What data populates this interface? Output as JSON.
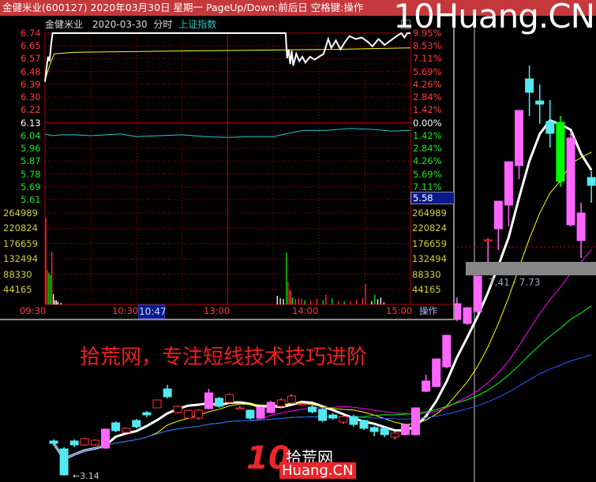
{
  "window": {
    "title": "金健米业(600127) 2020年03月30日 星期一 PageUp/Down:前后日 空格键:操作",
    "watermark": "10Huang.CN"
  },
  "header": {
    "stock": "金健米业",
    "date": "2020-03-30",
    "mode": "分时",
    "index_link": "上证指数"
  },
  "overlay": {
    "slogan": "拾荒网，专注短线技术技巧进阶",
    "range_label": "7.41 - 7.73",
    "low_label": "3.14",
    "logo_text": "拾荒网",
    "logo_sub": "Huang.CN",
    "logo_num": "10"
  },
  "colors": {
    "up": "#ff3232",
    "down": "#00e600",
    "flat": "#ffffff",
    "price_line": "#ffffff",
    "avg_line": "#ffff00",
    "index_line": "#20c8c8",
    "grid": "#b00000",
    "titlebar": "#c5383b",
    "candle_up": "#ff66ff",
    "candle_down": "#55e8f0",
    "candle_big_down": "#00ff00"
  },
  "chart_data": [
    {
      "type": "line",
      "name_hint": "intraday",
      "prev_close": 6.13,
      "ylim": [
        5.52,
        6.74
      ],
      "price_ticks_left": [
        "6.74",
        "6.65",
        "6.57",
        "6.48",
        "6.39",
        "6.30",
        "6.22",
        "6.13",
        "6.04",
        "5.96",
        "5.87",
        "5.78",
        "5.69",
        "5.61"
      ],
      "pct_ticks_right": [
        "9.95%",
        "8.53%",
        "7.11%",
        "5.69%",
        "4.26%",
        "2.84%",
        "1.42%",
        "0.00%",
        "1.42%",
        "2.84%",
        "4.26%",
        "5.69%",
        "7.11%"
      ],
      "cursor_price": "5.58",
      "time_ticks": [
        "09:30",
        "10:30",
        "13:00",
        "14:00",
        "15:00"
      ],
      "cursor_time": "10:47",
      "action_label": "操作",
      "price": [
        [
          0,
          6.41
        ],
        [
          1,
          6.5
        ],
        [
          2,
          6.58
        ],
        [
          3,
          6.55
        ],
        [
          4,
          6.66
        ],
        [
          5,
          6.74
        ],
        [
          158,
          6.74
        ],
        [
          159,
          6.57
        ],
        [
          160,
          6.63
        ],
        [
          161,
          6.53
        ],
        [
          162,
          6.62
        ],
        [
          163,
          6.52
        ],
        [
          165,
          6.6
        ],
        [
          167,
          6.55
        ],
        [
          169,
          6.58
        ],
        [
          171,
          6.54
        ],
        [
          174,
          6.58
        ],
        [
          177,
          6.56
        ],
        [
          180,
          6.58
        ],
        [
          183,
          6.6
        ],
        [
          186,
          6.7
        ],
        [
          188,
          6.64
        ],
        [
          191,
          6.69
        ],
        [
          194,
          6.63
        ],
        [
          197,
          6.68
        ],
        [
          200,
          6.72
        ],
        [
          204,
          6.7
        ],
        [
          208,
          6.71
        ],
        [
          212,
          6.68
        ],
        [
          215,
          6.65
        ],
        [
          219,
          6.7
        ],
        [
          223,
          6.66
        ],
        [
          227,
          6.69
        ],
        [
          231,
          6.72
        ],
        [
          234,
          6.74
        ],
        [
          236,
          6.71
        ],
        [
          238,
          6.74
        ],
        [
          240,
          6.74
        ]
      ],
      "avg_price": [
        [
          0,
          6.42
        ],
        [
          3,
          6.52
        ],
        [
          6,
          6.6
        ],
        [
          20,
          6.61
        ],
        [
          100,
          6.62
        ],
        [
          190,
          6.63
        ],
        [
          240,
          6.64
        ]
      ],
      "index_pct": [
        [
          0,
          -1.2
        ],
        [
          5,
          -1.4
        ],
        [
          10,
          -1.3
        ],
        [
          20,
          -1.3
        ],
        [
          30,
          -1.4
        ],
        [
          40,
          -1.3
        ],
        [
          50,
          -1.2
        ],
        [
          60,
          -1.5
        ],
        [
          75,
          -1.4
        ],
        [
          90,
          -1.3
        ],
        [
          105,
          -1.5
        ],
        [
          120,
          -1.6
        ],
        [
          135,
          -1.5
        ],
        [
          150,
          -1.5
        ],
        [
          158,
          -1.2
        ],
        [
          170,
          -0.8
        ],
        [
          185,
          -0.8
        ],
        [
          200,
          -0.6
        ],
        [
          215,
          -0.7
        ],
        [
          228,
          -0.9
        ],
        [
          240,
          -0.8
        ]
      ],
      "volume_ticks": [
        "264989",
        "220824",
        "176659",
        "132494",
        "88330",
        "44165"
      ],
      "volume_max": 264989,
      "volume": [
        [
          0,
          250000,
          "up"
        ],
        [
          1,
          100000,
          "up"
        ],
        [
          2,
          92000,
          "down"
        ],
        [
          3,
          85000,
          "down"
        ],
        [
          4,
          152000,
          "up"
        ],
        [
          5,
          30000,
          "flat"
        ],
        [
          6,
          12000,
          "flat"
        ],
        [
          7,
          12000,
          "flat"
        ],
        [
          8,
          8000,
          "flat"
        ],
        [
          10,
          5000,
          "flat"
        ],
        [
          152,
          25000,
          "flat"
        ],
        [
          154,
          18000,
          "flat"
        ],
        [
          156,
          16000,
          "flat"
        ],
        [
          158,
          150000,
          "down"
        ],
        [
          159,
          66000,
          "up"
        ],
        [
          160,
          42000,
          "up"
        ],
        [
          161,
          40000,
          "up"
        ],
        [
          162,
          20000,
          "down"
        ],
        [
          164,
          16000,
          "up"
        ],
        [
          166,
          18000,
          "up"
        ],
        [
          168,
          17000,
          "up"
        ],
        [
          170,
          12000,
          "down"
        ],
        [
          174,
          12000,
          "up"
        ],
        [
          178,
          16000,
          "up"
        ],
        [
          182,
          12000,
          "down"
        ],
        [
          184,
          28000,
          "up"
        ],
        [
          188,
          18000,
          "down"
        ],
        [
          192,
          10000,
          "up"
        ],
        [
          196,
          9000,
          "down"
        ],
        [
          200,
          10000,
          "up"
        ],
        [
          204,
          14000,
          "up"
        ],
        [
          208,
          18000,
          "up"
        ],
        [
          210,
          60000,
          "up"
        ],
        [
          214,
          10000,
          "flat"
        ],
        [
          216,
          28000,
          "down"
        ],
        [
          218,
          15000,
          "flat"
        ],
        [
          220,
          20000,
          "flat"
        ],
        [
          222,
          6000,
          "flat"
        ]
      ]
    },
    {
      "type": "candlestick",
      "candles": [
        {
          "o": 3.58,
          "c": 3.55,
          "h": 3.6,
          "l": 3.52
        },
        {
          "o": 3.48,
          "c": 3.15,
          "h": 3.5,
          "l": 3.14
        },
        {
          "o": 3.58,
          "c": 3.53,
          "h": 3.6,
          "l": 3.5
        },
        {
          "o": 3.53,
          "c": 3.61,
          "h": 3.62,
          "l": 3.52
        },
        {
          "o": 3.53,
          "c": 3.59,
          "h": 3.6,
          "l": 3.52
        },
        {
          "o": 3.49,
          "c": 3.73,
          "h": 3.74,
          "l": 3.48
        },
        {
          "o": 3.81,
          "c": 3.71,
          "h": 3.83,
          "l": 3.69
        },
        {
          "o": 3.69,
          "c": 3.74,
          "h": 3.75,
          "l": 3.68
        },
        {
          "o": 3.84,
          "c": 3.76,
          "h": 3.86,
          "l": 3.74
        },
        {
          "o": 3.94,
          "c": 3.91,
          "h": 3.96,
          "l": 3.88
        },
        {
          "o": 4.0,
          "c": 4.1,
          "h": 4.1,
          "l": 4.0
        },
        {
          "o": 4.24,
          "c": 4.14,
          "h": 4.29,
          "l": 4.12
        },
        {
          "o": 3.94,
          "c": 4.02,
          "h": 4.03,
          "l": 3.93
        },
        {
          "o": 3.87,
          "c": 3.97,
          "h": 3.98,
          "l": 3.86
        },
        {
          "o": 3.87,
          "c": 3.97,
          "h": 3.98,
          "l": 3.85
        },
        {
          "o": 3.99,
          "c": 4.19,
          "h": 4.24,
          "l": 3.98
        },
        {
          "o": 4.12,
          "c": 4.02,
          "h": 4.14,
          "l": 4.0
        },
        {
          "o": 4.07,
          "c": 4.17,
          "h": 4.18,
          "l": 4.05
        },
        {
          "o": 4.0,
          "c": 4.0,
          "h": 4.02,
          "l": 3.98
        },
        {
          "o": 3.97,
          "c": 3.87,
          "h": 3.98,
          "l": 3.85
        },
        {
          "o": 3.87,
          "c": 4.01,
          "h": 4.02,
          "l": 3.86
        },
        {
          "o": 3.94,
          "c": 4.07,
          "h": 4.09,
          "l": 3.93
        },
        {
          "o": 4.02,
          "c": 4.1,
          "h": 4.12,
          "l": 4.0
        },
        {
          "o": 4.06,
          "c": 4.15,
          "h": 4.17,
          "l": 4.05
        },
        {
          "o": 4.05,
          "c": 4.05,
          "h": 4.07,
          "l": 4.03
        },
        {
          "o": 4.01,
          "c": 3.95,
          "h": 4.03,
          "l": 3.93
        },
        {
          "o": 3.98,
          "c": 3.84,
          "h": 4.0,
          "l": 3.82
        },
        {
          "o": 3.91,
          "c": 3.87,
          "h": 3.93,
          "l": 3.85
        },
        {
          "o": 3.82,
          "c": 3.89,
          "h": 3.9,
          "l": 3.8
        },
        {
          "o": 3.89,
          "c": 3.79,
          "h": 3.91,
          "l": 3.76
        },
        {
          "o": 3.84,
          "c": 3.74,
          "h": 3.85,
          "l": 3.72
        },
        {
          "o": 3.75,
          "c": 3.7,
          "h": 3.77,
          "l": 3.64
        },
        {
          "o": 3.74,
          "c": 3.66,
          "h": 3.76,
          "l": 3.63
        },
        {
          "o": 3.63,
          "c": 3.68,
          "h": 3.7,
          "l": 3.6
        },
        {
          "o": 3.66,
          "c": 3.79,
          "h": 3.8,
          "l": 3.65
        },
        {
          "o": 3.66,
          "c": 4.0,
          "h": 4.0,
          "l": 3.65
        },
        {
          "o": 4.21,
          "c": 4.34,
          "h": 4.42,
          "l": 4.2
        },
        {
          "o": 4.27,
          "c": 4.62,
          "h": 4.62,
          "l": 4.26
        },
        {
          "o": 4.52,
          "c": 4.92,
          "h": 4.92,
          "l": 4.5
        },
        {
          "o": 5.12,
          "c": 5.32,
          "h": 5.4,
          "l": 5.1
        },
        {
          "o": 5.07,
          "c": 5.27,
          "h": 5.27,
          "l": 5.05
        },
        {
          "o": 5.22,
          "c": 5.67,
          "h": 5.67,
          "l": 5.2
        },
        {
          "o": 6.12,
          "c": 6.13,
          "h": 6.15,
          "l": 5.85
        },
        {
          "o": 6.27,
          "c": 6.62,
          "h": 6.62,
          "l": 6.0
        },
        {
          "o": 6.57,
          "c": 7.12,
          "h": 7.12,
          "l": 6.3
        },
        {
          "o": 7.07,
          "c": 7.77,
          "h": 7.77,
          "l": 6.9
        },
        {
          "o": 8.17,
          "c": 8.0,
          "h": 8.34,
          "l": 7.7
        },
        {
          "o": 7.89,
          "c": 7.85,
          "h": 8.1,
          "l": 7.6
        },
        {
          "o": 7.63,
          "c": 7.48,
          "h": 7.9,
          "l": 7.3
        },
        {
          "o": 7.62,
          "c": 6.87,
          "h": 7.7,
          "l": 6.8
        },
        {
          "o": 6.32,
          "c": 7.42,
          "h": 7.5,
          "l": 6.3
        },
        {
          "o": 6.12,
          "c": 6.47,
          "h": 6.6,
          "l": 5.9
        },
        {
          "o": 6.92,
          "c": 6.82,
          "h": 7.0,
          "l": 6.6
        }
      ],
      "ma_periods": [
        5,
        10,
        20,
        30,
        60
      ],
      "ma_colors": [
        "#ffffff",
        "#ffff00",
        "#ff00ff",
        "#00ff00",
        "#2060ff"
      ]
    }
  ]
}
